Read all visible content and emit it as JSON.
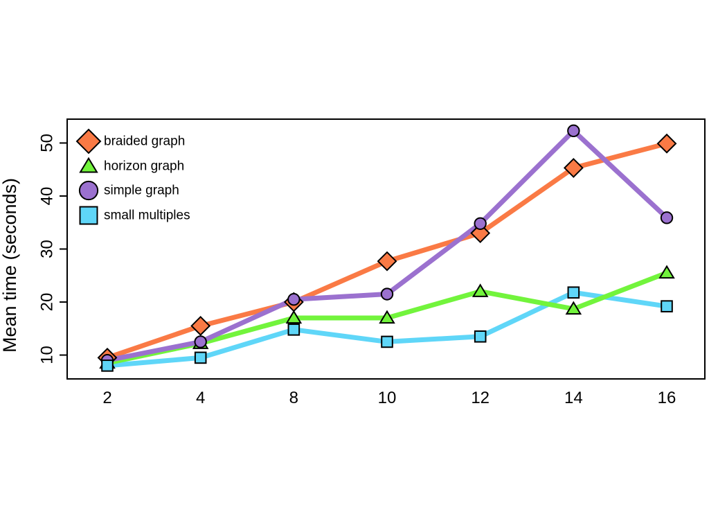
{
  "chart_data": {
    "type": "line",
    "title": "",
    "xlabel": "",
    "ylabel": "Mean time (seconds)",
    "categories": [
      "2",
      "4",
      "8",
      "10",
      "12",
      "14",
      "16"
    ],
    "yticks": [
      "10",
      "20",
      "30",
      "40",
      "50"
    ],
    "ylim": [
      5.5,
      54.5
    ],
    "grid": false,
    "legend_position": "top-left",
    "series": [
      {
        "name": "braided graph",
        "marker": "diamond",
        "color": "#fa7a45",
        "values": [
          9.5,
          15.5,
          20.0,
          27.7,
          33.0,
          45.3,
          49.9
        ]
      },
      {
        "name": "horizon graph",
        "marker": "triangle",
        "color": "#72f43c",
        "values": [
          8.5,
          12.2,
          17.0,
          17.0,
          22.0,
          18.7,
          25.5
        ]
      },
      {
        "name": "simple graph",
        "marker": "circle",
        "color": "#9b71cf",
        "values": [
          9.0,
          12.5,
          20.5,
          21.5,
          34.8,
          52.3,
          35.9
        ]
      },
      {
        "name": "small multiples",
        "marker": "square",
        "color": "#5fd6f8",
        "values": [
          8.0,
          9.5,
          14.8,
          12.5,
          13.5,
          21.8,
          19.2
        ]
      }
    ]
  }
}
